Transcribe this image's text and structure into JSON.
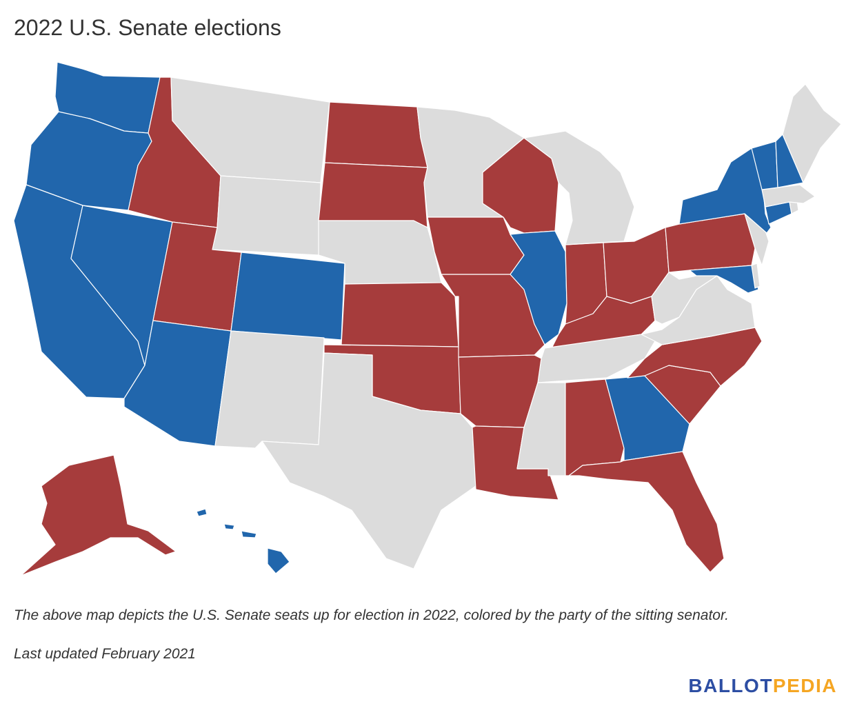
{
  "title": "2022 U.S. Senate elections",
  "caption": "The above map depicts the U.S. Senate seats up for election in 2022, colored by the party of the sitting senator.",
  "updated": "Last updated February 2021",
  "logo": {
    "part1": "BALLOT",
    "part2": "PEDIA"
  },
  "colors": {
    "democratic": "#2166ac",
    "republican": "#a63c3c",
    "none": "#dcdcdc"
  },
  "states": {
    "WA": "democratic",
    "OR": "democratic",
    "CA": "democratic",
    "NV": "democratic",
    "AZ": "democratic",
    "CO": "democratic",
    "IL": "democratic",
    "GA": "democratic",
    "NY": "democratic",
    "VT": "democratic",
    "NH": "democratic",
    "CT": "democratic",
    "MD": "democratic",
    "HI": "democratic",
    "ID": "republican",
    "UT": "republican",
    "ND": "republican",
    "SD": "republican",
    "KS": "republican",
    "OK": "republican",
    "IA": "republican",
    "MO": "republican",
    "AR": "republican",
    "LA": "republican",
    "WI": "republican",
    "IN": "republican",
    "OH": "republican",
    "KY": "republican",
    "AL": "republican",
    "FL": "republican",
    "SC": "republican",
    "NC": "republican",
    "PA": "republican",
    "AK": "republican",
    "MT": "none",
    "WY": "none",
    "NE": "none",
    "NM": "none",
    "TX": "none",
    "MN": "none",
    "MI": "none",
    "MS": "none",
    "TN": "none",
    "WV": "none",
    "VA": "none",
    "ME": "none",
    "MA": "none",
    "RI": "none",
    "NJ": "none",
    "DE": "none"
  }
}
